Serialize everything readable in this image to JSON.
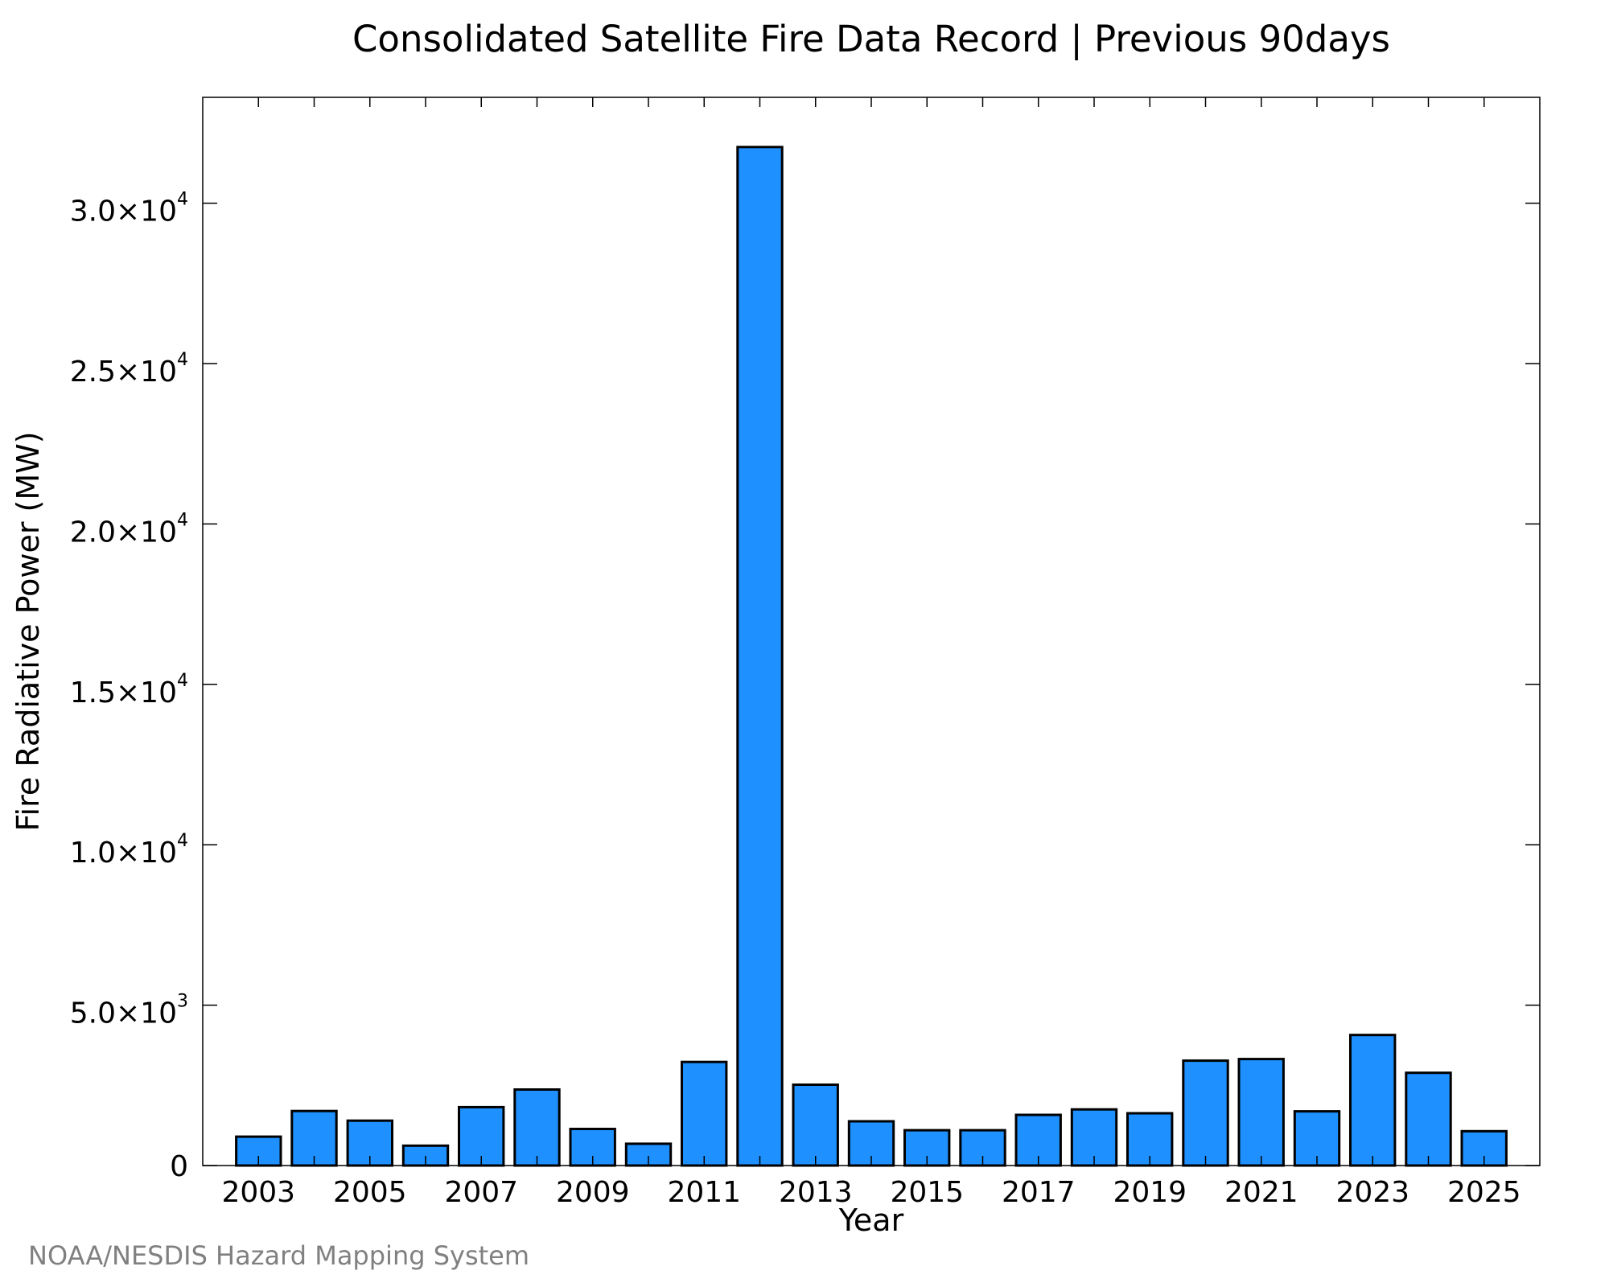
{
  "chart_data": {
    "type": "bar",
    "title": "Consolidated Satellite Fire Data Record | Previous 90days",
    "xlabel": "Year",
    "ylabel": "Fire Radiative Power (MW)",
    "credit": "NOAA/NESDIS Hazard Mapping System",
    "categories": [
      2003,
      2004,
      2005,
      2006,
      2007,
      2008,
      2009,
      2010,
      2011,
      2012,
      2013,
      2014,
      2015,
      2016,
      2017,
      2018,
      2019,
      2020,
      2021,
      2022,
      2023,
      2024,
      2025
    ],
    "values": [
      900,
      1700,
      1400,
      620,
      1820,
      2370,
      1140,
      680,
      3230,
      31750,
      2520,
      1380,
      1100,
      1100,
      1580,
      1750,
      1630,
      3270,
      3320,
      1690,
      4070,
      2890,
      1070
    ],
    "x_tick_labels": [
      "2003",
      "2005",
      "2007",
      "2009",
      "2011",
      "2013",
      "2015",
      "2017",
      "2019",
      "2021",
      "2023",
      "2025"
    ],
    "xlim": [
      2002.0,
      2026.0
    ],
    "ylim": [
      0,
      33300
    ],
    "y_ticks": [
      {
        "value": 0,
        "mantissa": "0",
        "exp": ""
      },
      {
        "value": 5000,
        "mantissa": "5.0×10",
        "exp": "3"
      },
      {
        "value": 10000,
        "mantissa": "1.0×10",
        "exp": "4"
      },
      {
        "value": 15000,
        "mantissa": "1.5×10",
        "exp": "4"
      },
      {
        "value": 20000,
        "mantissa": "2.0×10",
        "exp": "4"
      },
      {
        "value": 25000,
        "mantissa": "2.5×10",
        "exp": "4"
      },
      {
        "value": 30000,
        "mantissa": "3.0×10",
        "exp": "4"
      }
    ],
    "bar_color": "#1e90ff",
    "bar_edge_color": "#000000",
    "grid": false,
    "legend": "none"
  }
}
